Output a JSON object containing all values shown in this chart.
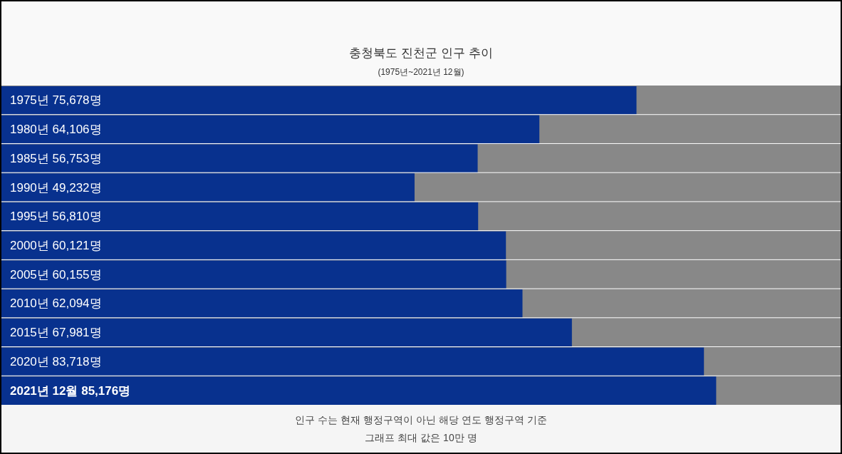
{
  "chart_data": {
    "type": "bar",
    "orientation": "horizontal",
    "title": "충청북도 진천군 인구 추이",
    "subtitle": "(1975년~2021년 12월)",
    "categories": [
      "1975년",
      "1980년",
      "1985년",
      "1990년",
      "1995년",
      "2000년",
      "2005년",
      "2010년",
      "2015년",
      "2020년",
      "2021년 12월"
    ],
    "values": [
      75678,
      64106,
      56753,
      49232,
      56810,
      60121,
      60155,
      62094,
      67981,
      83718,
      85176
    ],
    "value_labels": [
      "75,678명",
      "64,106명",
      "56,753명",
      "49,232명",
      "56,810명",
      "60,121명",
      "60,155명",
      "62,094명",
      "67,981명",
      "83,718명",
      "85,176명"
    ],
    "color": "#08318e",
    "xlim": [
      0,
      100000
    ],
    "annotations": [
      "인구 수는 현재 행정구역이 아닌 해당 연도 행정구역 기준",
      "그래프 최대 값은 10만 명"
    ]
  }
}
